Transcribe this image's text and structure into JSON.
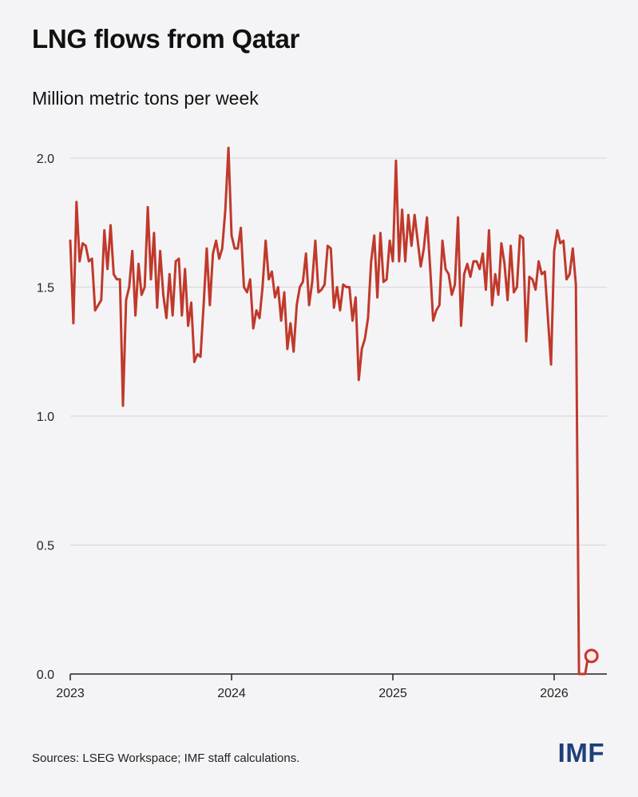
{
  "title": "LNG flows from Qatar",
  "subtitle": "Million metric tons per week",
  "source": "Sources: LSEG Workspace; IMF staff calculations.",
  "logo_text": "IMF",
  "colors": {
    "line": "#c0392b",
    "grid": "#d5d5d8",
    "axis": "#222222",
    "logo": "#1e3f7a",
    "background": "#f4f4f6"
  },
  "chart_data": {
    "type": "line",
    "title": "LNG flows from Qatar",
    "ylabel": "Million metric tons per week",
    "xlabel": "",
    "ylim": [
      0,
      2.0
    ],
    "y_ticks": [
      {
        "value": 0.0,
        "label": "0.0"
      },
      {
        "value": 0.5,
        "label": "0.5"
      },
      {
        "value": 1.0,
        "label": "1.0"
      },
      {
        "value": 1.5,
        "label": "1.5"
      },
      {
        "value": 2.0,
        "label": "2.0"
      }
    ],
    "x_ticks": [
      {
        "value": 2023,
        "label": "2023"
      },
      {
        "value": 2024,
        "label": "2024"
      },
      {
        "value": 2025,
        "label": "2025"
      },
      {
        "value": 2026,
        "label": "2026"
      }
    ],
    "xlim": [
      2023,
      2026.33
    ],
    "grid": true,
    "end_marker": true,
    "series": [
      {
        "name": "LNG flows from Qatar",
        "x_start": 2023.0,
        "x_step": 0.01923,
        "values": [
          1.68,
          1.36,
          1.83,
          1.6,
          1.67,
          1.66,
          1.6,
          1.61,
          1.41,
          1.43,
          1.45,
          1.72,
          1.57,
          1.74,
          1.55,
          1.53,
          1.53,
          1.04,
          1.45,
          1.5,
          1.64,
          1.39,
          1.59,
          1.47,
          1.5,
          1.81,
          1.53,
          1.71,
          1.42,
          1.64,
          1.47,
          1.38,
          1.55,
          1.39,
          1.6,
          1.61,
          1.39,
          1.57,
          1.35,
          1.44,
          1.21,
          1.24,
          1.23,
          1.43,
          1.65,
          1.43,
          1.63,
          1.68,
          1.61,
          1.65,
          1.8,
          2.04,
          1.7,
          1.65,
          1.65,
          1.73,
          1.5,
          1.48,
          1.53,
          1.34,
          1.41,
          1.38,
          1.5,
          1.68,
          1.53,
          1.56,
          1.46,
          1.5,
          1.37,
          1.48,
          1.26,
          1.36,
          1.25,
          1.43,
          1.5,
          1.52,
          1.63,
          1.43,
          1.52,
          1.68,
          1.48,
          1.49,
          1.51,
          1.66,
          1.65,
          1.42,
          1.5,
          1.41,
          1.51,
          1.5,
          1.5,
          1.37,
          1.46,
          1.14,
          1.26,
          1.3,
          1.38,
          1.6,
          1.7,
          1.46,
          1.71,
          1.52,
          1.53,
          1.68,
          1.6,
          1.99,
          1.6,
          1.8,
          1.6,
          1.78,
          1.66,
          1.78,
          1.68,
          1.58,
          1.65,
          1.77,
          1.58,
          1.37,
          1.41,
          1.43,
          1.68,
          1.57,
          1.55,
          1.47,
          1.51,
          1.77,
          1.35,
          1.55,
          1.59,
          1.54,
          1.6,
          1.6,
          1.57,
          1.63,
          1.49,
          1.72,
          1.43,
          1.55,
          1.47,
          1.67,
          1.59,
          1.45,
          1.66,
          1.48,
          1.5,
          1.7,
          1.69,
          1.29,
          1.54,
          1.53,
          1.49,
          1.6,
          1.55,
          1.56,
          1.38,
          1.2,
          1.64,
          1.72,
          1.67,
          1.68,
          1.53,
          1.55,
          1.65,
          1.51,
          0.0,
          0.0,
          0.0,
          0.07
        ]
      }
    ]
  }
}
